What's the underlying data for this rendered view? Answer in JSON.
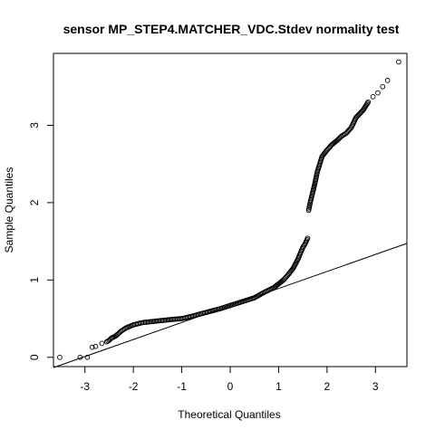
{
  "chart_data": {
    "type": "scatter",
    "title": "sensor MP_STEP4.MATCHER_VDC.Stdev normality test",
    "xlabel": "Theoretical Quantiles",
    "ylabel": "Sample Quantiles",
    "xlim": [
      -3.65,
      3.65
    ],
    "ylim": [
      -0.12,
      3.93
    ],
    "x_ticks": [
      -3,
      -2,
      -1,
      0,
      1,
      2,
      3
    ],
    "x_tick_labels": [
      "-3",
      "-2",
      "-1",
      "0",
      "1",
      "2",
      "3"
    ],
    "y_ticks": [
      0,
      1,
      2,
      3
    ],
    "y_tick_labels": [
      "0",
      "1",
      "2",
      "3"
    ],
    "reference_line": {
      "intercept": 0.67,
      "slope": 0.22
    },
    "series": [
      {
        "point_style": "open-circle",
        "x": [
          -3.52,
          -3.1,
          -2.95,
          -2.85,
          -2.78,
          -2.65,
          -2.55,
          -2.5,
          -2.45,
          -2.38,
          -2.32,
          -2.25,
          -2.15,
          -2.0,
          -1.8,
          -1.5,
          -1.2,
          -1.0,
          -0.8,
          -0.5,
          -0.2,
          0.0,
          0.2,
          0.5,
          0.7,
          0.9,
          1.0,
          1.1,
          1.2,
          1.3,
          1.4,
          1.5,
          1.55,
          1.6,
          1.62,
          1.64,
          1.66,
          1.68,
          1.7,
          1.72,
          1.75,
          1.8,
          1.85,
          1.9,
          2.0,
          2.1,
          2.2,
          2.3,
          2.4,
          2.5,
          2.6,
          2.75,
          2.85,
          2.95,
          3.05,
          3.15,
          3.25,
          3.48
        ],
        "y": [
          0.0,
          0.0,
          0.0,
          0.13,
          0.14,
          0.18,
          0.2,
          0.22,
          0.25,
          0.27,
          0.3,
          0.34,
          0.38,
          0.42,
          0.45,
          0.47,
          0.49,
          0.5,
          0.53,
          0.58,
          0.63,
          0.67,
          0.71,
          0.77,
          0.84,
          0.9,
          0.95,
          1.0,
          1.07,
          1.15,
          1.27,
          1.42,
          1.47,
          1.54,
          1.9,
          1.96,
          2.02,
          2.07,
          2.12,
          2.17,
          2.25,
          2.4,
          2.5,
          2.6,
          2.68,
          2.75,
          2.8,
          2.86,
          2.9,
          2.97,
          3.1,
          3.2,
          3.3,
          3.37,
          3.42,
          3.5,
          3.58,
          3.82
        ]
      }
    ]
  }
}
